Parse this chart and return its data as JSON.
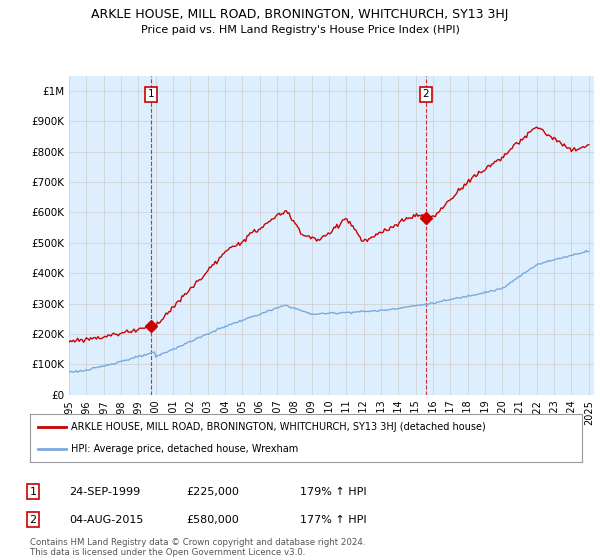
{
  "title": "ARKLE HOUSE, MILL ROAD, BRONINGTON, WHITCHURCH, SY13 3HJ",
  "subtitle": "Price paid vs. HM Land Registry's House Price Index (HPI)",
  "ylim": [
    0,
    1050000
  ],
  "yticks": [
    0,
    100000,
    200000,
    300000,
    400000,
    500000,
    600000,
    700000,
    800000,
    900000,
    1000000
  ],
  "ytick_labels": [
    "£0",
    "£100K",
    "£200K",
    "£300K",
    "£400K",
    "£500K",
    "£600K",
    "£700K",
    "£800K",
    "£900K",
    "£1M"
  ],
  "hpi_color": "#7aaadd",
  "price_color": "#cc0000",
  "vline_color": "#cc0000",
  "bg_color": "#ddeeff",
  "marker1_year": 1999.73,
  "marker1_price": 225000,
  "marker2_year": 2015.58,
  "marker2_price": 580000,
  "annotation1": [
    "1",
    "24-SEP-1999",
    "£225,000",
    "179% ↑ HPI"
  ],
  "annotation2": [
    "2",
    "04-AUG-2015",
    "£580,000",
    "177% ↑ HPI"
  ],
  "legend1": "ARKLE HOUSE, MILL ROAD, BRONINGTON, WHITCHURCH, SY13 3HJ (detached house)",
  "legend2": "HPI: Average price, detached house, Wrexham",
  "footnote": "Contains HM Land Registry data © Crown copyright and database right 2024.\nThis data is licensed under the Open Government Licence v3.0.",
  "background_color": "#ffffff",
  "grid_color": "#cccccc"
}
